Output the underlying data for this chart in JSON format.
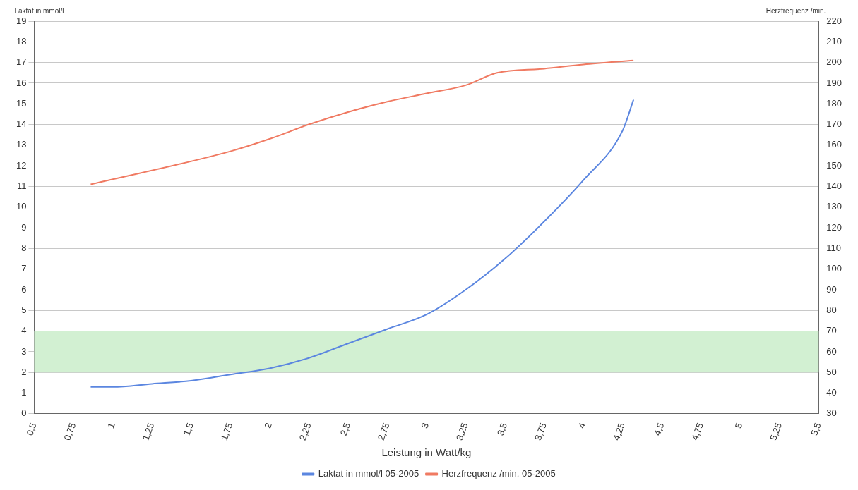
{
  "chart_data": {
    "type": "line",
    "xlabel": "Leistung in Watt/kg",
    "ylabel": "Laktat in mmol/l",
    "y2label": "Herzfrequenz /min.",
    "xlim": [
      0.5,
      5.5
    ],
    "xticks": [
      {
        "value": 0.5,
        "label": "0,5"
      },
      {
        "value": 0.75,
        "label": "0,75"
      },
      1,
      {
        "value": 1.25,
        "label": "1,25"
      },
      {
        "value": 1.5,
        "label": "1,5"
      },
      {
        "value": 1.75,
        "label": "1,75"
      },
      2,
      {
        "value": 2.25,
        "label": "2,25"
      },
      {
        "value": 2.5,
        "label": "2,5"
      },
      {
        "value": 2.75,
        "label": "2,75"
      },
      3,
      {
        "value": 3.25,
        "label": "3,25"
      },
      {
        "value": 3.5,
        "label": "3,5"
      },
      {
        "value": 3.75,
        "label": "3,75"
      },
      4,
      {
        "value": 4.25,
        "label": "4,25"
      },
      {
        "value": 4.5,
        "label": "4,5"
      },
      {
        "value": 4.75,
        "label": "4,75"
      },
      5,
      {
        "value": 5.25,
        "label": "5,25"
      },
      {
        "value": 5.5,
        "label": "5,5"
      }
    ],
    "ylim": [
      0,
      19
    ],
    "yticks": [
      0,
      1,
      2,
      3,
      4,
      5,
      6,
      7,
      8,
      9,
      10,
      11,
      12,
      13,
      14,
      15,
      16,
      17,
      18,
      19
    ],
    "y2lim": [
      30,
      220
    ],
    "y2ticks": [
      30,
      40,
      50,
      60,
      70,
      80,
      90,
      100,
      110,
      120,
      130,
      140,
      150,
      160,
      170,
      180,
      190,
      200,
      210,
      220
    ],
    "grid": "y",
    "legend": "bottom",
    "marker": "none",
    "line_style": "solid",
    "bands": [
      {
        "axis": "y",
        "from": 2,
        "to": 4,
        "color": "#d2f0d2"
      }
    ],
    "series": [
      {
        "name": "Laktat in mmol/l 05-2005",
        "color": "#5b86e0",
        "x": [
          0.86,
          1,
          1.25,
          1.5,
          1.75,
          2,
          2.25,
          2.5,
          2.75,
          3,
          3.25,
          3.5,
          3.75,
          4,
          4.25,
          4.32
        ],
        "values": [
          1.3,
          1.3,
          1.45,
          1.6,
          1.9,
          2.2,
          2.7,
          3.4,
          4.1,
          4.8,
          6.0,
          7.5,
          9.3,
          11.3,
          13.7,
          15.2
        ]
      },
      {
        "name": "Herzfrequenz /min. 05-2005",
        "color": "#f07a62",
        "axis": "y2",
        "x": [
          0.86,
          1.75,
          2,
          2.25,
          2.5,
          2.75,
          3,
          3.25,
          3.45,
          3.75,
          4,
          4.32
        ],
        "values": [
          141,
          157,
          163,
          170,
          176,
          181,
          185,
          189,
          195,
          197,
          199,
          201
        ]
      }
    ]
  }
}
